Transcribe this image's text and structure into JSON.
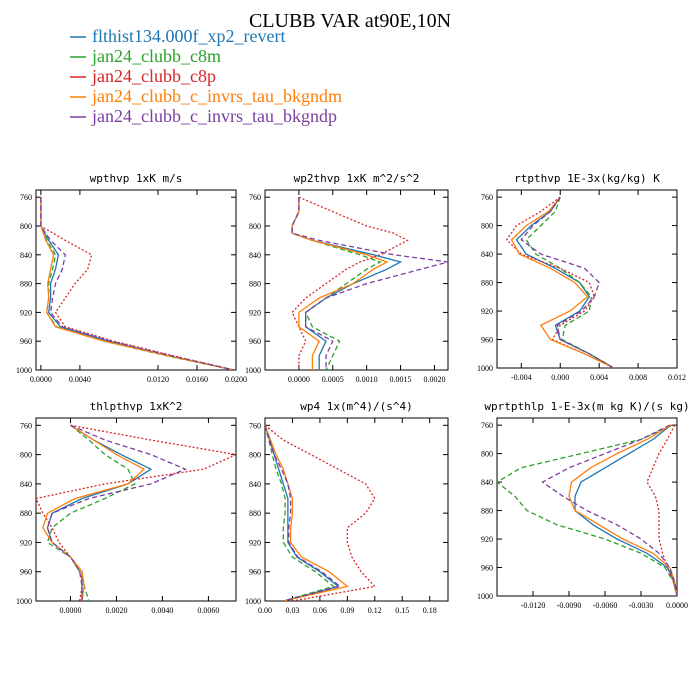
{
  "figure": {
    "title": "CLUBB VAR at90E,10N"
  },
  "legend": [
    {
      "name": "flthist134.000f_xp2_revert",
      "color": "#1f77b4",
      "dash": "solid"
    },
    {
      "name": "jan24_clubb_c8m",
      "color": "#2ca02c",
      "dash": "dash"
    },
    {
      "name": "jan24_clubb_c8p",
      "color": "#d62728",
      "dash": "dot"
    },
    {
      "name": "jan24_clubb_c_invrs_tau_bkgndm",
      "color": "#ff7f0e",
      "dash": "solid"
    },
    {
      "name": "jan24_clubb_c_invrs_tau_bkgndp",
      "color": "#7b3fa0",
      "dash": "dash"
    }
  ],
  "chart_data": [
    {
      "type": "line",
      "title": "wpthvp  1xK m/s",
      "xlim": [
        -0.0005,
        0.02
      ],
      "ylim": [
        1000,
        750
      ],
      "xticks": [
        0.0,
        0.004,
        0.012,
        0.016,
        0.02
      ],
      "xtick_labels": [
        "0.0000",
        "0.0040",
        "0.0120",
        "0.0160",
        "0.0200"
      ],
      "yticks": [
        760,
        800,
        840,
        880,
        920,
        960,
        1000
      ],
      "y": [
        760,
        780,
        800,
        820,
        840,
        860,
        880,
        900,
        920,
        940,
        960,
        980,
        1000
      ],
      "series": [
        {
          "name": "flthist134.000f_xp2_revert",
          "values": [
            0.0,
            0.0,
            0.0,
            0.0008,
            0.0018,
            0.0015,
            0.001,
            0.001,
            0.0008,
            0.002,
            0.007,
            0.013,
            0.0198
          ]
        },
        {
          "name": "jan24_clubb_c8m",
          "values": [
            0.0,
            0.0,
            0.0,
            0.0006,
            0.0015,
            0.0012,
            0.0008,
            0.0008,
            0.0006,
            0.0016,
            0.0065,
            0.0128,
            0.0198
          ]
        },
        {
          "name": "jan24_clubb_c8p",
          "values": [
            0.0,
            0.0,
            0.0,
            0.0025,
            0.0052,
            0.0048,
            0.0035,
            0.0025,
            0.0015,
            0.0025,
            0.0075,
            0.0135,
            0.0198
          ]
        },
        {
          "name": "jan24_clubb_c_invrs_tau_bkgndm",
          "values": [
            0.0,
            0.0,
            0.0,
            0.0005,
            0.0013,
            0.001,
            0.0007,
            0.0008,
            0.0006,
            0.0015,
            0.0065,
            0.013,
            0.0198
          ]
        },
        {
          "name": "jan24_clubb_c_invrs_tau_bkgndp",
          "values": [
            0.0,
            0.0,
            0.0,
            0.001,
            0.0025,
            0.0022,
            0.0015,
            0.0012,
            0.001,
            0.0022,
            0.0072,
            0.0133,
            0.0198
          ]
        }
      ]
    },
    {
      "type": "line",
      "title": "wp2thvp  1xK m^2/s^2",
      "xlim": [
        -0.0005,
        0.0022
      ],
      "ylim": [
        1000,
        750
      ],
      "xticks": [
        0.0,
        0.0005,
        0.001,
        0.0015,
        0.002
      ],
      "xtick_labels": [
        "0.0000",
        "0.0005",
        "0.0010",
        "0.0015",
        "0.0020"
      ],
      "yticks": [
        760,
        800,
        840,
        880,
        920,
        960,
        1000
      ],
      "y": [
        760,
        780,
        800,
        810,
        820,
        840,
        850,
        860,
        880,
        900,
        920,
        940,
        960,
        980,
        1000
      ],
      "series": [
        {
          "name": "flthist134.000f_xp2_revert",
          "values": [
            0.0,
            0.0,
            -0.0001,
            -0.0001,
            0.0002,
            0.0011,
            0.0015,
            0.0013,
            0.0008,
            0.0004,
            0.0001,
            0.0001,
            0.0004,
            0.0003,
            0.0003
          ]
        },
        {
          "name": "jan24_clubb_c8m",
          "values": [
            0.0,
            0.0,
            -0.0001,
            -0.0001,
            0.0002,
            0.0009,
            0.0012,
            0.001,
            0.0007,
            0.0004,
            0.0001,
            0.0002,
            0.0006,
            0.0005,
            0.0004
          ]
        },
        {
          "name": "jan24_clubb_c8p",
          "values": [
            0.0,
            0.0005,
            0.001,
            0.0014,
            0.0016,
            0.0012,
            0.0009,
            0.0007,
            0.0004,
            0.0001,
            -0.0001,
            0.0,
            0.0001,
            0.0,
            0.0
          ]
        },
        {
          "name": "jan24_clubb_c_invrs_tau_bkgndm",
          "values": [
            0.0,
            0.0,
            -0.0001,
            -0.0001,
            0.0002,
            0.001,
            0.0013,
            0.0011,
            0.0008,
            0.0003,
            0.0,
            0.0,
            0.0003,
            0.0002,
            0.0002
          ]
        },
        {
          "name": "jan24_clubb_c_invrs_tau_bkgndp",
          "values": [
            0.0,
            0.0,
            -0.0001,
            -0.0001,
            0.0003,
            0.0014,
            0.0022,
            0.0018,
            0.001,
            0.0004,
            0.0001,
            0.0001,
            0.0005,
            0.0004,
            0.0004
          ]
        }
      ]
    },
    {
      "type": "line",
      "title": "rtpthvp  1E-3x(kg/kg) K",
      "xlim": [
        -0.0065,
        0.012
      ],
      "ylim": [
        1000,
        750
      ],
      "xticks": [
        -0.004,
        0.0,
        0.004,
        0.008,
        0.012
      ],
      "xtick_labels": [
        "-0.004",
        "0.000",
        "0.004",
        "0.008",
        "0.012"
      ],
      "yticks": [
        760,
        800,
        840,
        880,
        920,
        960,
        1000
      ],
      "y": [
        760,
        780,
        800,
        820,
        840,
        860,
        880,
        900,
        920,
        940,
        960,
        980,
        1000
      ],
      "series": [
        {
          "name": "flthist134.000f_xp2_revert",
          "values": [
            0.0,
            -0.001,
            -0.003,
            -0.0045,
            -0.0035,
            -0.0005,
            0.002,
            0.003,
            0.002,
            -0.0005,
            0.0,
            0.003,
            0.0055
          ]
        },
        {
          "name": "jan24_clubb_c8m",
          "values": [
            0.0,
            -0.0005,
            -0.002,
            -0.0035,
            -0.0025,
            0.0,
            0.002,
            0.0032,
            0.003,
            0.0005,
            0.0002,
            0.003,
            0.0055
          ]
        },
        {
          "name": "jan24_clubb_c8p",
          "values": [
            0.0,
            -0.002,
            -0.0045,
            -0.0055,
            -0.004,
            0.0,
            0.003,
            0.0035,
            0.0025,
            0.0,
            -0.0008,
            0.0025,
            0.0055
          ]
        },
        {
          "name": "jan24_clubb_c_invrs_tau_bkgndm",
          "values": [
            0.0,
            -0.0012,
            -0.0035,
            -0.005,
            -0.0042,
            -0.001,
            0.0015,
            0.0028,
            0.001,
            -0.002,
            -0.001,
            0.0025,
            0.0055
          ]
        },
        {
          "name": "jan24_clubb_c_invrs_tau_bkgndp",
          "values": [
            0.0,
            -0.001,
            -0.0028,
            -0.004,
            -0.002,
            0.0025,
            0.004,
            0.0035,
            0.0022,
            -0.0003,
            0.0,
            0.003,
            0.0055
          ]
        }
      ]
    },
    {
      "type": "line",
      "title": "thlpthvp  1xK^2",
      "xlim": [
        -0.0015,
        0.0072
      ],
      "ylim": [
        1000,
        750
      ],
      "xticks": [
        0.0,
        0.002,
        0.004,
        0.006
      ],
      "xtick_labels": [
        "0.0000",
        "0.0020",
        "0.0040",
        "0.0060"
      ],
      "yticks": [
        760,
        800,
        840,
        880,
        920,
        960,
        1000
      ],
      "y": [
        760,
        780,
        800,
        820,
        840,
        860,
        880,
        900,
        920,
        940,
        960,
        980,
        1000
      ],
      "series": [
        {
          "name": "flthist134.000f_xp2_revert",
          "values": [
            0.0,
            0.001,
            0.0022,
            0.0035,
            0.0025,
            0.0005,
            -0.0008,
            -0.001,
            -0.0008,
            0.0,
            0.0005,
            0.0005,
            0.0005
          ]
        },
        {
          "name": "jan24_clubb_c8m",
          "values": [
            0.0,
            0.0008,
            0.0015,
            0.0025,
            0.0028,
            0.0015,
            0.0,
            -0.0008,
            -0.001,
            0.0,
            0.0004,
            0.0006,
            0.0008
          ]
        },
        {
          "name": "jan24_clubb_c8p",
          "values": [
            0.0,
            0.0035,
            0.0072,
            0.0058,
            0.0015,
            -0.0015,
            -0.0012,
            -0.0008,
            -0.0005,
            0.0,
            0.0005,
            0.0005,
            0.0004
          ]
        },
        {
          "name": "jan24_clubb_c_invrs_tau_bkgndm",
          "values": [
            0.0,
            0.001,
            0.002,
            0.0032,
            0.0025,
            0.0002,
            -0.001,
            -0.0012,
            -0.0008,
            0.0,
            0.0005,
            0.0006,
            0.0005
          ]
        },
        {
          "name": "jan24_clubb_c_invrs_tau_bkgndp",
          "values": [
            0.0,
            0.0015,
            0.0035,
            0.005,
            0.0035,
            0.0008,
            -0.0008,
            -0.001,
            -0.0008,
            0.0,
            0.0004,
            0.0005,
            0.0005
          ]
        }
      ]
    },
    {
      "type": "line",
      "title": "wp4  1x(m^4)/(s^4)",
      "xlim": [
        0.0,
        0.2
      ],
      "ylim": [
        1000,
        750
      ],
      "xticks": [
        0.0,
        0.03,
        0.06,
        0.09,
        0.12,
        0.15,
        0.18
      ],
      "xtick_labels": [
        "0.00",
        "0.03",
        "0.06",
        "0.09",
        "0.12",
        "0.15",
        "0.18"
      ],
      "yticks": [
        760,
        800,
        840,
        880,
        920,
        960,
        1000
      ],
      "y": [
        760,
        780,
        800,
        820,
        840,
        860,
        880,
        900,
        920,
        940,
        960,
        980,
        1000
      ],
      "series": [
        {
          "name": "flthist134.000f_xp2_revert",
          "values": [
            0.0,
            0.005,
            0.01,
            0.015,
            0.02,
            0.025,
            0.025,
            0.025,
            0.025,
            0.035,
            0.06,
            0.08,
            0.02
          ]
        },
        {
          "name": "jan24_clubb_c8m",
          "values": [
            0.0,
            0.004,
            0.008,
            0.012,
            0.018,
            0.022,
            0.022,
            0.02,
            0.02,
            0.03,
            0.055,
            0.075,
            0.02
          ]
        },
        {
          "name": "jan24_clubb_c8p",
          "values": [
            0.0,
            0.02,
            0.05,
            0.08,
            0.11,
            0.12,
            0.11,
            0.09,
            0.09,
            0.095,
            0.105,
            0.12,
            0.03
          ]
        },
        {
          "name": "jan24_clubb_c_invrs_tau_bkgndm",
          "values": [
            0.0,
            0.006,
            0.012,
            0.02,
            0.025,
            0.03,
            0.03,
            0.028,
            0.028,
            0.04,
            0.07,
            0.09,
            0.02
          ]
        },
        {
          "name": "jan24_clubb_c_invrs_tau_bkgndp",
          "values": [
            0.0,
            0.005,
            0.01,
            0.018,
            0.025,
            0.028,
            0.028,
            0.026,
            0.026,
            0.036,
            0.062,
            0.082,
            0.02
          ]
        }
      ]
    },
    {
      "type": "line",
      "title": "wprtpthlp  1-E-3x(m kg K)/(s kg)",
      "xlim": [
        -0.015,
        0.0
      ],
      "ylim": [
        1000,
        750
      ],
      "xticks": [
        -0.012,
        -0.009,
        -0.006,
        -0.003,
        0.0
      ],
      "xtick_labels": [
        "-0.0120",
        "-0.0090",
        "-0.0060",
        "-0.0030",
        "0.0000"
      ],
      "yticks": [
        760,
        800,
        840,
        880,
        920,
        960,
        1000
      ],
      "y": [
        760,
        780,
        800,
        820,
        840,
        860,
        880,
        900,
        920,
        940,
        960,
        980,
        1000
      ],
      "series": [
        {
          "name": "flthist134.000f_xp2_revert",
          "values": [
            -0.0005,
            -0.002,
            -0.004,
            -0.006,
            -0.008,
            -0.0085,
            -0.0085,
            -0.007,
            -0.005,
            -0.0025,
            -0.0008,
            -0.0002,
            0.0
          ]
        },
        {
          "name": "jan24_clubb_c8m",
          "values": [
            -0.0004,
            -0.003,
            -0.008,
            -0.013,
            -0.015,
            -0.0135,
            -0.0125,
            -0.01,
            -0.006,
            -0.003,
            -0.001,
            -0.0003,
            0.0
          ]
        },
        {
          "name": "jan24_clubb_c8p",
          "values": [
            -0.0002,
            -0.0008,
            -0.0015,
            -0.002,
            -0.0025,
            -0.0018,
            -0.0015,
            -0.0015,
            -0.0015,
            -0.0012,
            -0.0008,
            -0.0003,
            0.0
          ]
        },
        {
          "name": "jan24_clubb_c_invrs_tau_bkgndm",
          "values": [
            -0.0005,
            -0.0025,
            -0.005,
            -0.0072,
            -0.0088,
            -0.009,
            -0.0085,
            -0.0065,
            -0.0045,
            -0.002,
            -0.0006,
            -0.0002,
            0.0
          ]
        },
        {
          "name": "jan24_clubb_c_invrs_tau_bkgndp",
          "values": [
            -0.0006,
            -0.003,
            -0.006,
            -0.009,
            -0.0112,
            -0.0095,
            -0.0075,
            -0.005,
            -0.003,
            -0.0015,
            -0.0006,
            -0.0002,
            0.0
          ]
        }
      ]
    }
  ]
}
